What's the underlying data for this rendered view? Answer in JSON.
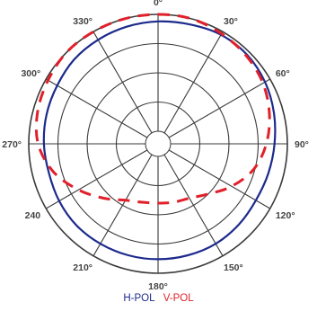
{
  "chart_data": {
    "type": "polar",
    "title": "",
    "angle_labels": [
      "0°",
      "30°",
      "60°",
      "90°",
      "120°",
      "150°",
      "180°",
      "210°",
      "240",
      "270°",
      "300°",
      "330°"
    ],
    "angle_unit": "degrees",
    "rings": 4,
    "grid": true,
    "legend_placement": "bottom-center",
    "series": [
      {
        "name": "H-POL",
        "color": "#1c2a8c",
        "line_style": "solid",
        "values": [
          {
            "angle": 0,
            "r": 0.94
          },
          {
            "angle": 15,
            "r": 0.95
          },
          {
            "angle": 30,
            "r": 0.97
          },
          {
            "angle": 45,
            "r": 0.97
          },
          {
            "angle": 60,
            "r": 0.95
          },
          {
            "angle": 75,
            "r": 0.92
          },
          {
            "angle": 90,
            "r": 0.89
          },
          {
            "angle": 105,
            "r": 0.87
          },
          {
            "angle": 120,
            "r": 0.86
          },
          {
            "angle": 135,
            "r": 0.87
          },
          {
            "angle": 150,
            "r": 0.88
          },
          {
            "angle": 165,
            "r": 0.88
          },
          {
            "angle": 180,
            "r": 0.88
          },
          {
            "angle": 195,
            "r": 0.88
          },
          {
            "angle": 210,
            "r": 0.88
          },
          {
            "angle": 225,
            "r": 0.88
          },
          {
            "angle": 240,
            "r": 0.87
          },
          {
            "angle": 255,
            "r": 0.86
          },
          {
            "angle": 270,
            "r": 0.87
          },
          {
            "angle": 285,
            "r": 0.88
          },
          {
            "angle": 300,
            "r": 0.89
          },
          {
            "angle": 315,
            "r": 0.91
          },
          {
            "angle": 330,
            "r": 0.92
          },
          {
            "angle": 345,
            "r": 0.93
          }
        ]
      },
      {
        "name": "V-POL",
        "color": "#e0202a",
        "line_style": "dashed",
        "values": [
          {
            "angle": 0,
            "r": 1.0
          },
          {
            "angle": 15,
            "r": 1.0
          },
          {
            "angle": 30,
            "r": 0.98
          },
          {
            "angle": 45,
            "r": 0.96
          },
          {
            "angle": 60,
            "r": 0.93
          },
          {
            "angle": 75,
            "r": 0.88
          },
          {
            "angle": 90,
            "r": 0.82
          },
          {
            "angle": 105,
            "r": 0.74
          },
          {
            "angle": 120,
            "r": 0.62
          },
          {
            "angle": 135,
            "r": 0.5
          },
          {
            "angle": 150,
            "r": 0.43
          },
          {
            "angle": 165,
            "r": 0.41
          },
          {
            "angle": 180,
            "r": 0.4
          },
          {
            "angle": 195,
            "r": 0.41
          },
          {
            "angle": 210,
            "r": 0.45
          },
          {
            "angle": 225,
            "r": 0.55
          },
          {
            "angle": 240,
            "r": 0.68
          },
          {
            "angle": 255,
            "r": 0.82
          },
          {
            "angle": 270,
            "r": 0.92
          },
          {
            "angle": 285,
            "r": 0.96
          },
          {
            "angle": 300,
            "r": 0.98
          },
          {
            "angle": 315,
            "r": 1.0
          },
          {
            "angle": 330,
            "r": 1.0
          },
          {
            "angle": 345,
            "r": 1.0
          }
        ]
      }
    ]
  },
  "legend": {
    "h_pol": "H-POL",
    "v_pol": "V-POL"
  }
}
